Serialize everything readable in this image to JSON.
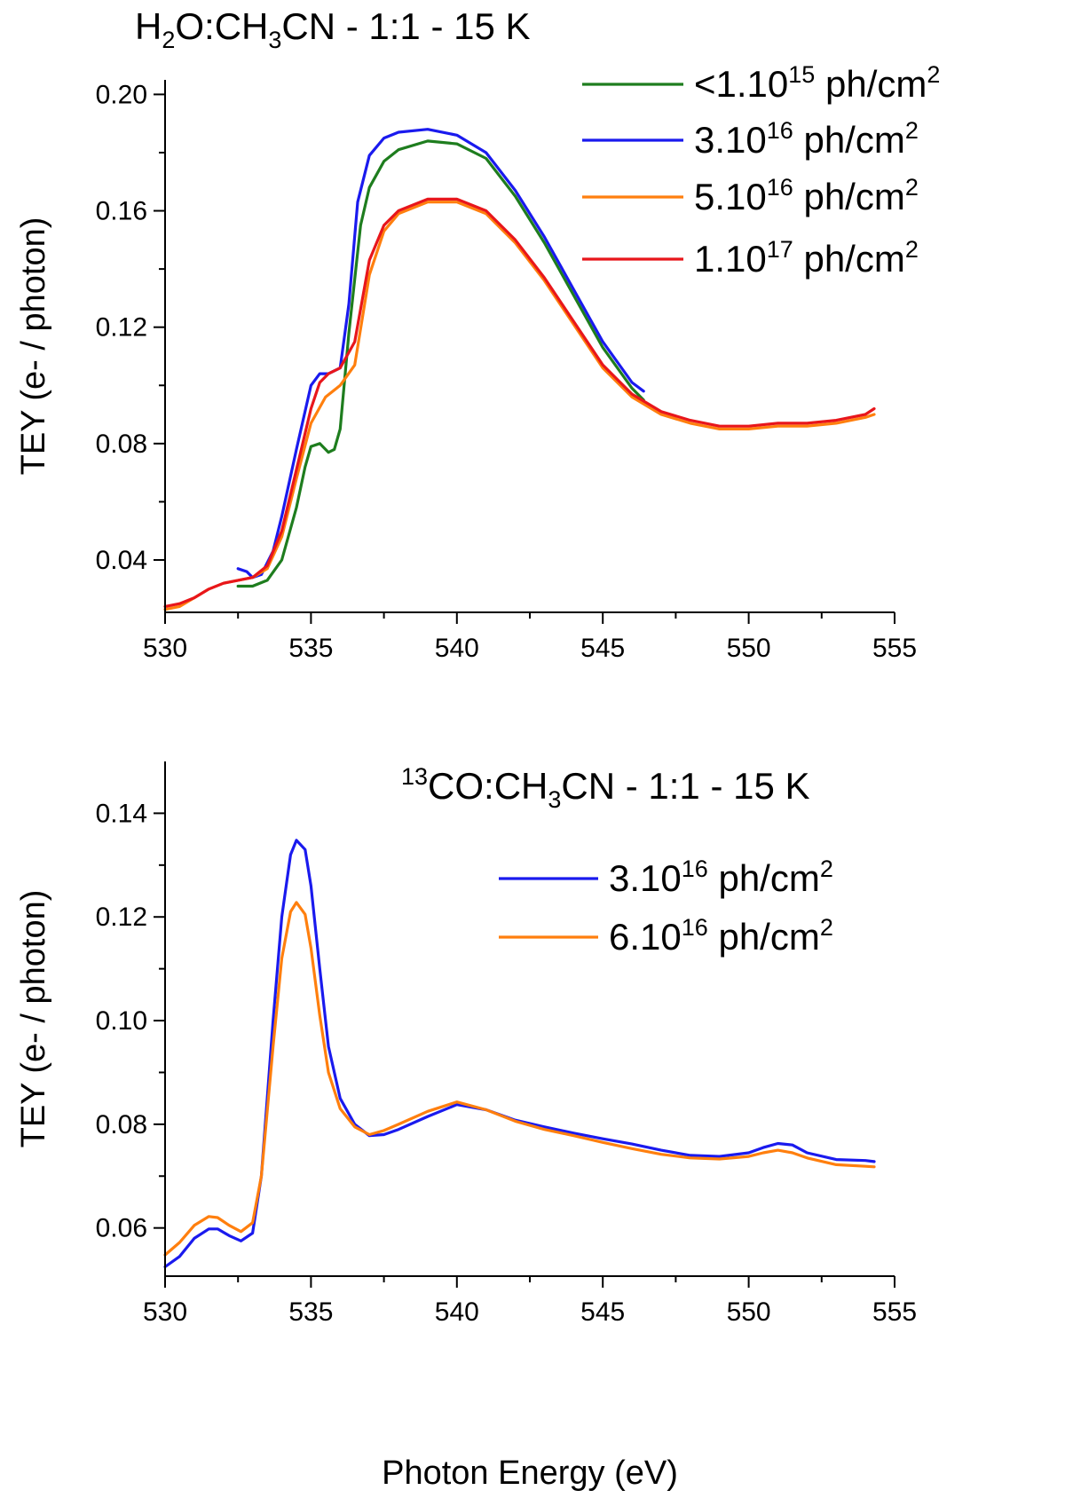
{
  "chart_data": [
    {
      "type": "line",
      "title_parts": [
        {
          "text": "H",
          "style": "normal"
        },
        {
          "text": "2",
          "style": "sub"
        },
        {
          "text": "O:CH",
          "style": "normal"
        },
        {
          "text": "3",
          "style": "sub"
        },
        {
          "text": "CN - 1:1 - 15 K",
          "style": "normal"
        }
      ],
      "ylabel": "TEY (e- / photon)",
      "xlabel": "",
      "xlim": [
        530,
        555
      ],
      "ylim": [
        0.022,
        0.205
      ],
      "xticks": [
        "530",
        "535",
        "540",
        "545",
        "550",
        "555"
      ],
      "yticks": [
        "0.04",
        "0.08",
        "0.12",
        "0.16",
        "0.20"
      ],
      "ytick_values": [
        0.04,
        0.08,
        0.12,
        0.16,
        0.2
      ],
      "series": [
        {
          "legend_parts": [
            {
              "text": "<1.10",
              "style": "normal"
            },
            {
              "text": "15",
              "style": "sup"
            },
            {
              "text": " ph/cm",
              "style": "normal"
            },
            {
              "text": "2",
              "style": "sup"
            }
          ],
          "color": "#1e7d1e",
          "x": [
            532.5,
            533.0,
            533.5,
            534.0,
            534.5,
            534.8,
            535.0,
            535.3,
            535.6,
            535.8,
            536.0,
            536.3,
            536.7,
            537.0,
            537.5,
            538.0,
            539.0,
            540.0,
            541.0,
            542.0,
            543.0,
            544.0,
            545.0,
            546.0,
            546.4
          ],
          "y": [
            0.031,
            0.031,
            0.033,
            0.04,
            0.058,
            0.072,
            0.079,
            0.08,
            0.077,
            0.078,
            0.085,
            0.118,
            0.155,
            0.168,
            0.177,
            0.181,
            0.184,
            0.183,
            0.178,
            0.165,
            0.149,
            0.131,
            0.113,
            0.099,
            0.095
          ]
        },
        {
          "legend_parts": [
            {
              "text": "3.10",
              "style": "normal"
            },
            {
              "text": "16",
              "style": "sup"
            },
            {
              "text": " ph/cm",
              "style": "normal"
            },
            {
              "text": "2",
              "style": "sup"
            }
          ],
          "color": "#1a1aee",
          "x": [
            532.5,
            532.8,
            533.0,
            533.3,
            533.7,
            534.0,
            534.5,
            535.0,
            535.3,
            535.6,
            536.0,
            536.3,
            536.6,
            537.0,
            537.5,
            538.0,
            539.0,
            540.0,
            541.0,
            542.0,
            543.0,
            544.0,
            545.0,
            546.0,
            546.4
          ],
          "y": [
            0.037,
            0.036,
            0.034,
            0.035,
            0.043,
            0.055,
            0.078,
            0.1,
            0.104,
            0.104,
            0.106,
            0.128,
            0.163,
            0.179,
            0.185,
            0.187,
            0.188,
            0.186,
            0.18,
            0.167,
            0.151,
            0.133,
            0.115,
            0.101,
            0.098
          ]
        },
        {
          "legend_parts": [
            {
              "text": "5.10",
              "style": "normal"
            },
            {
              "text": "16",
              "style": "sup"
            },
            {
              "text": " ph/cm",
              "style": "normal"
            },
            {
              "text": "2",
              "style": "sup"
            }
          ],
          "color": "#ff7f0e",
          "x": [
            530.0,
            530.5,
            531.0,
            531.5,
            532.0,
            532.5,
            533.0,
            533.5,
            534.0,
            534.5,
            535.0,
            535.5,
            536.0,
            536.5,
            537.0,
            537.5,
            538.0,
            539.0,
            540.0,
            541.0,
            542.0,
            543.0,
            544.0,
            545.0,
            546.0,
            547.0,
            548.0,
            549.0,
            550.0,
            551.0,
            552.0,
            553.0,
            554.0,
            554.3
          ],
          "y": [
            0.023,
            0.024,
            0.027,
            0.03,
            0.032,
            0.033,
            0.034,
            0.037,
            0.048,
            0.068,
            0.087,
            0.096,
            0.1,
            0.107,
            0.138,
            0.153,
            0.159,
            0.163,
            0.163,
            0.159,
            0.149,
            0.136,
            0.121,
            0.106,
            0.096,
            0.09,
            0.087,
            0.085,
            0.085,
            0.086,
            0.086,
            0.087,
            0.089,
            0.09
          ]
        },
        {
          "legend_parts": [
            {
              "text": "1.10",
              "style": "normal"
            },
            {
              "text": "17",
              "style": "sup"
            },
            {
              "text": " ph/cm",
              "style": "normal"
            },
            {
              "text": "2",
              "style": "sup"
            }
          ],
          "color": "#e8161b",
          "x": [
            530.0,
            530.5,
            531.0,
            531.5,
            532.0,
            532.5,
            533.0,
            533.5,
            534.0,
            534.5,
            535.0,
            535.3,
            535.6,
            536.0,
            536.5,
            537.0,
            537.5,
            538.0,
            539.0,
            540.0,
            541.0,
            542.0,
            543.0,
            544.0,
            545.0,
            546.0,
            547.0,
            548.0,
            549.0,
            550.0,
            551.0,
            552.0,
            553.0,
            554.0,
            554.3
          ],
          "y": [
            0.024,
            0.025,
            0.027,
            0.03,
            0.032,
            0.033,
            0.034,
            0.038,
            0.05,
            0.071,
            0.092,
            0.101,
            0.104,
            0.106,
            0.115,
            0.143,
            0.155,
            0.16,
            0.164,
            0.164,
            0.16,
            0.15,
            0.137,
            0.122,
            0.107,
            0.097,
            0.091,
            0.088,
            0.086,
            0.086,
            0.087,
            0.087,
            0.088,
            0.09,
            0.092
          ]
        }
      ]
    },
    {
      "type": "line",
      "title_parts": [
        {
          "text": "13",
          "style": "sup"
        },
        {
          "text": "CO:CH",
          "style": "normal"
        },
        {
          "text": "3",
          "style": "sub"
        },
        {
          "text": "CN - 1:1 - 15 K",
          "style": "normal"
        }
      ],
      "ylabel": "TEY (e- / photon)",
      "xlabel": "Photon Energy (eV)",
      "xlim": [
        530,
        555
      ],
      "ylim": [
        0.0507,
        0.15
      ],
      "xticks": [
        "530",
        "535",
        "540",
        "545",
        "550",
        "555"
      ],
      "yticks": [
        "0.06",
        "0.08",
        "0.10",
        "0.12",
        "0.14"
      ],
      "ytick_values": [
        0.06,
        0.08,
        0.1,
        0.12,
        0.14
      ],
      "series": [
        {
          "legend_parts": [
            {
              "text": "3.10",
              "style": "normal"
            },
            {
              "text": "16",
              "style": "sup"
            },
            {
              "text": " ph/cm",
              "style": "normal"
            },
            {
              "text": "2",
              "style": "sup"
            }
          ],
          "color": "#1a1aee",
          "x": [
            530.0,
            530.5,
            531.0,
            531.5,
            531.8,
            532.2,
            532.6,
            533.0,
            533.3,
            533.7,
            534.0,
            534.3,
            534.5,
            534.8,
            535.0,
            535.3,
            535.6,
            536.0,
            536.5,
            537.0,
            537.5,
            538.0,
            539.0,
            540.0,
            541.0,
            542.0,
            543.0,
            544.0,
            545.0,
            546.0,
            547.0,
            548.0,
            549.0,
            550.0,
            550.5,
            551.0,
            551.5,
            552.0,
            553.0,
            554.0,
            554.3
          ],
          "y": [
            0.0525,
            0.0545,
            0.058,
            0.0598,
            0.0598,
            0.0585,
            0.0575,
            0.059,
            0.07,
            0.1,
            0.12,
            0.132,
            0.1348,
            0.133,
            0.126,
            0.11,
            0.095,
            0.085,
            0.08,
            0.0778,
            0.078,
            0.079,
            0.0815,
            0.0838,
            0.0828,
            0.0808,
            0.0795,
            0.0783,
            0.0772,
            0.0762,
            0.075,
            0.074,
            0.0738,
            0.0745,
            0.0755,
            0.0763,
            0.076,
            0.0745,
            0.0732,
            0.073,
            0.0728
          ]
        },
        {
          "legend_parts": [
            {
              "text": "6.10",
              "style": "normal"
            },
            {
              "text": "16",
              "style": "sup"
            },
            {
              "text": " ph/cm",
              "style": "normal"
            },
            {
              "text": "2",
              "style": "sup"
            }
          ],
          "color": "#ff7f0e",
          "x": [
            530.0,
            530.5,
            531.0,
            531.5,
            531.8,
            532.2,
            532.6,
            533.0,
            533.3,
            533.7,
            534.0,
            534.3,
            534.5,
            534.8,
            535.0,
            535.3,
            535.6,
            536.0,
            536.5,
            537.0,
            537.5,
            538.0,
            539.0,
            540.0,
            541.0,
            542.0,
            543.0,
            544.0,
            545.0,
            546.0,
            547.0,
            548.0,
            549.0,
            550.0,
            550.5,
            551.0,
            551.5,
            552.0,
            553.0,
            554.0,
            554.3
          ],
          "y": [
            0.0548,
            0.0572,
            0.0605,
            0.0622,
            0.062,
            0.0605,
            0.0593,
            0.061,
            0.07,
            0.095,
            0.112,
            0.121,
            0.1228,
            0.1205,
            0.114,
            0.101,
            0.09,
            0.083,
            0.0795,
            0.078,
            0.0788,
            0.08,
            0.0825,
            0.0843,
            0.0828,
            0.0806,
            0.079,
            0.0778,
            0.0765,
            0.0753,
            0.0742,
            0.0735,
            0.0733,
            0.0738,
            0.0745,
            0.075,
            0.0745,
            0.0735,
            0.0722,
            0.0719,
            0.0718
          ]
        }
      ]
    }
  ]
}
